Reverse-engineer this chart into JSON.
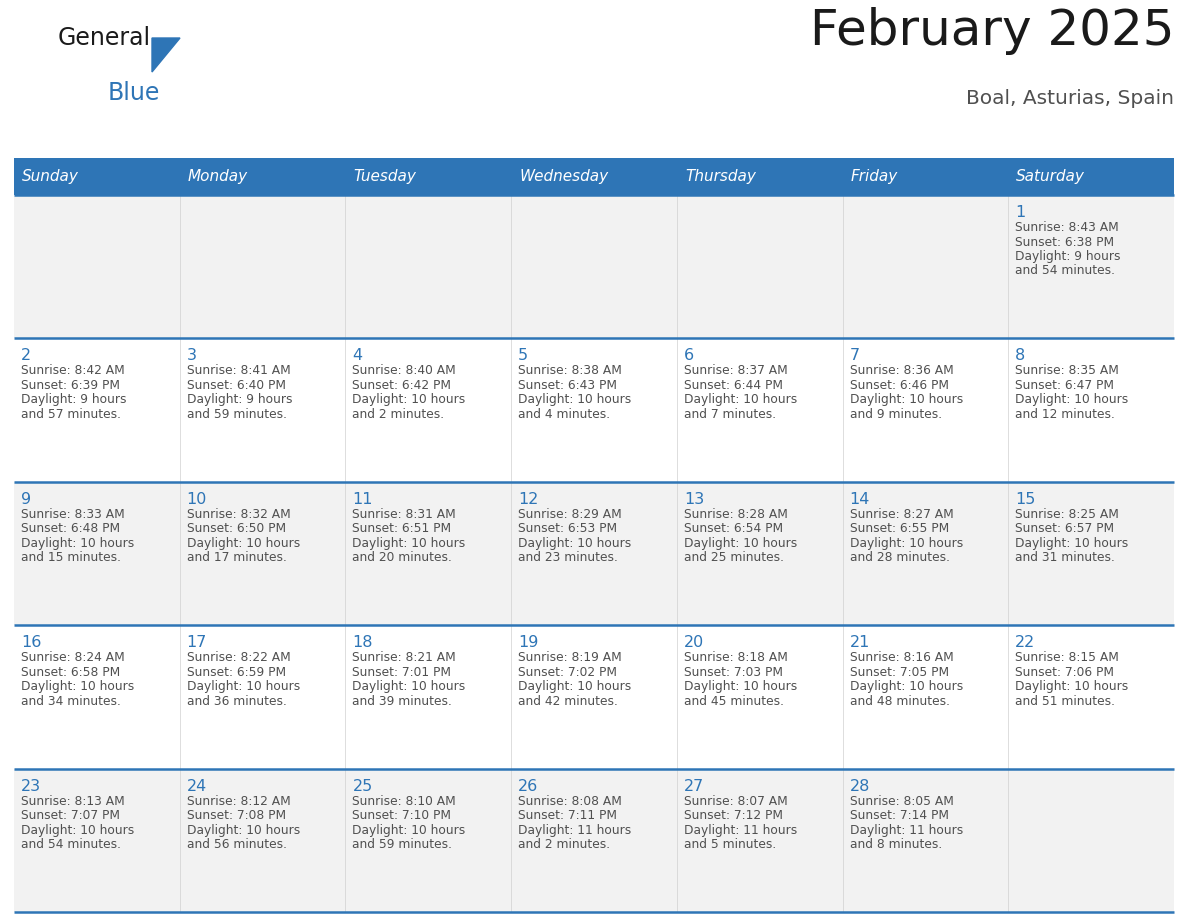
{
  "title": "February 2025",
  "subtitle": "Boal, Asturias, Spain",
  "header_bg": "#2E75B6",
  "header_text_color": "#FFFFFF",
  "cell_bg_row0": "#F2F2F2",
  "cell_bg_row1": "#FFFFFF",
  "cell_bg_row2": "#F2F2F2",
  "cell_bg_row3": "#FFFFFF",
  "cell_bg_row4": "#F2F2F2",
  "border_color": "#2E75B6",
  "day_number_color": "#2E75B6",
  "cell_text_color": "#505050",
  "weekdays": [
    "Sunday",
    "Monday",
    "Tuesday",
    "Wednesday",
    "Thursday",
    "Friday",
    "Saturday"
  ],
  "logo_general_color": "#1a1a1a",
  "logo_blue_color": "#2E75B6",
  "days": [
    {
      "day": 1,
      "col": 6,
      "row": 0,
      "sunrise": "8:43 AM",
      "sunset": "6:38 PM",
      "daylight": "9 hours and 54 minutes."
    },
    {
      "day": 2,
      "col": 0,
      "row": 1,
      "sunrise": "8:42 AM",
      "sunset": "6:39 PM",
      "daylight": "9 hours and 57 minutes."
    },
    {
      "day": 3,
      "col": 1,
      "row": 1,
      "sunrise": "8:41 AM",
      "sunset": "6:40 PM",
      "daylight": "9 hours and 59 minutes."
    },
    {
      "day": 4,
      "col": 2,
      "row": 1,
      "sunrise": "8:40 AM",
      "sunset": "6:42 PM",
      "daylight": "10 hours and 2 minutes."
    },
    {
      "day": 5,
      "col": 3,
      "row": 1,
      "sunrise": "8:38 AM",
      "sunset": "6:43 PM",
      "daylight": "10 hours and 4 minutes."
    },
    {
      "day": 6,
      "col": 4,
      "row": 1,
      "sunrise": "8:37 AM",
      "sunset": "6:44 PM",
      "daylight": "10 hours and 7 minutes."
    },
    {
      "day": 7,
      "col": 5,
      "row": 1,
      "sunrise": "8:36 AM",
      "sunset": "6:46 PM",
      "daylight": "10 hours and 9 minutes."
    },
    {
      "day": 8,
      "col": 6,
      "row": 1,
      "sunrise": "8:35 AM",
      "sunset": "6:47 PM",
      "daylight": "10 hours and 12 minutes."
    },
    {
      "day": 9,
      "col": 0,
      "row": 2,
      "sunrise": "8:33 AM",
      "sunset": "6:48 PM",
      "daylight": "10 hours and 15 minutes."
    },
    {
      "day": 10,
      "col": 1,
      "row": 2,
      "sunrise": "8:32 AM",
      "sunset": "6:50 PM",
      "daylight": "10 hours and 17 minutes."
    },
    {
      "day": 11,
      "col": 2,
      "row": 2,
      "sunrise": "8:31 AM",
      "sunset": "6:51 PM",
      "daylight": "10 hours and 20 minutes."
    },
    {
      "day": 12,
      "col": 3,
      "row": 2,
      "sunrise": "8:29 AM",
      "sunset": "6:53 PM",
      "daylight": "10 hours and 23 minutes."
    },
    {
      "day": 13,
      "col": 4,
      "row": 2,
      "sunrise": "8:28 AM",
      "sunset": "6:54 PM",
      "daylight": "10 hours and 25 minutes."
    },
    {
      "day": 14,
      "col": 5,
      "row": 2,
      "sunrise": "8:27 AM",
      "sunset": "6:55 PM",
      "daylight": "10 hours and 28 minutes."
    },
    {
      "day": 15,
      "col": 6,
      "row": 2,
      "sunrise": "8:25 AM",
      "sunset": "6:57 PM",
      "daylight": "10 hours and 31 minutes."
    },
    {
      "day": 16,
      "col": 0,
      "row": 3,
      "sunrise": "8:24 AM",
      "sunset": "6:58 PM",
      "daylight": "10 hours and 34 minutes."
    },
    {
      "day": 17,
      "col": 1,
      "row": 3,
      "sunrise": "8:22 AM",
      "sunset": "6:59 PM",
      "daylight": "10 hours and 36 minutes."
    },
    {
      "day": 18,
      "col": 2,
      "row": 3,
      "sunrise": "8:21 AM",
      "sunset": "7:01 PM",
      "daylight": "10 hours and 39 minutes."
    },
    {
      "day": 19,
      "col": 3,
      "row": 3,
      "sunrise": "8:19 AM",
      "sunset": "7:02 PM",
      "daylight": "10 hours and 42 minutes."
    },
    {
      "day": 20,
      "col": 4,
      "row": 3,
      "sunrise": "8:18 AM",
      "sunset": "7:03 PM",
      "daylight": "10 hours and 45 minutes."
    },
    {
      "day": 21,
      "col": 5,
      "row": 3,
      "sunrise": "8:16 AM",
      "sunset": "7:05 PM",
      "daylight": "10 hours and 48 minutes."
    },
    {
      "day": 22,
      "col": 6,
      "row": 3,
      "sunrise": "8:15 AM",
      "sunset": "7:06 PM",
      "daylight": "10 hours and 51 minutes."
    },
    {
      "day": 23,
      "col": 0,
      "row": 4,
      "sunrise": "8:13 AM",
      "sunset": "7:07 PM",
      "daylight": "10 hours and 54 minutes."
    },
    {
      "day": 24,
      "col": 1,
      "row": 4,
      "sunrise": "8:12 AM",
      "sunset": "7:08 PM",
      "daylight": "10 hours and 56 minutes."
    },
    {
      "day": 25,
      "col": 2,
      "row": 4,
      "sunrise": "8:10 AM",
      "sunset": "7:10 PM",
      "daylight": "10 hours and 59 minutes."
    },
    {
      "day": 26,
      "col": 3,
      "row": 4,
      "sunrise": "8:08 AM",
      "sunset": "7:11 PM",
      "daylight": "11 hours and 2 minutes."
    },
    {
      "day": 27,
      "col": 4,
      "row": 4,
      "sunrise": "8:07 AM",
      "sunset": "7:12 PM",
      "daylight": "11 hours and 5 minutes."
    },
    {
      "day": 28,
      "col": 5,
      "row": 4,
      "sunrise": "8:05 AM",
      "sunset": "7:14 PM",
      "daylight": "11 hours and 8 minutes."
    }
  ]
}
